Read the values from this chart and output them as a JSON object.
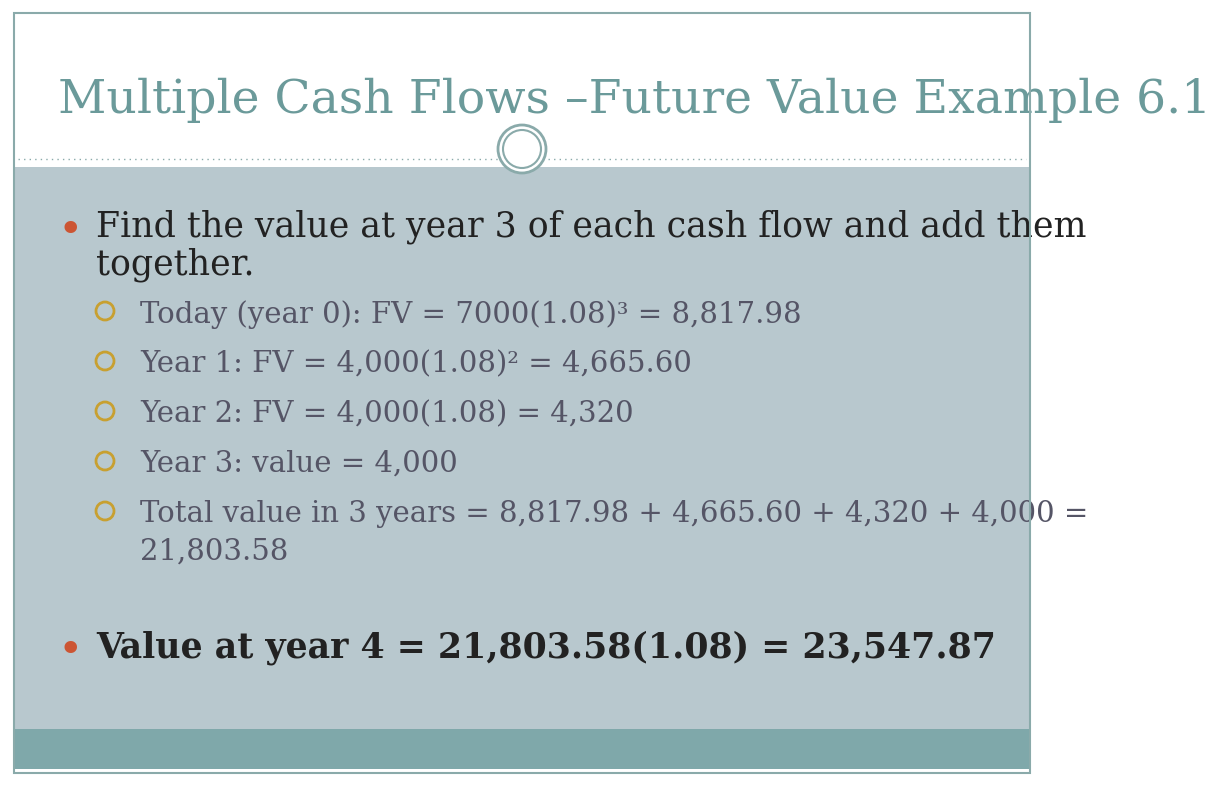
{
  "title": "Multiple Cash Flows –Future Value Example 6.1",
  "title_color": "#6b9a9a",
  "title_fontsize": 34,
  "bg_color": "#ffffff",
  "content_bg_color": "#b8c8ce",
  "footer_bg_color": "#7fa8aa",
  "bullet1_text_line1": "Find the value at year 3 of each cash flow and add them",
  "bullet1_text_line2": "together.",
  "bullet1_color": "#222222",
  "bullet1_fontsize": 25,
  "bullet_marker_color": "#cc5533",
  "sub_bullet_marker_color": "#c8a030",
  "sub_bullets": [
    "Today (year 0): FV = 7000(1.08)³ = 8,817.98",
    "Year 1: FV = 4,000(1.08)² = 4,665.60",
    "Year 2: FV = 4,000(1.08) = 4,320",
    "Year 3: value = 4,000",
    "Total value in 3 years = 8,817.98 + 4,665.60 + 4,320 + 4,000 =",
    "21,803.58"
  ],
  "sub_bullet_color": "#555566",
  "sub_bullet_fontsize": 21,
  "bullet2_text": "Value at year 4 = 21,803.58(1.08) = 23,547.87",
  "bullet2_color": "#222222",
  "bullet2_fontsize": 25,
  "divider_color": "#8aaaaa",
  "circle_edge_color": "#8aaaaa",
  "circle_fill": "#ffffff",
  "border_color": "#8aaaaa"
}
